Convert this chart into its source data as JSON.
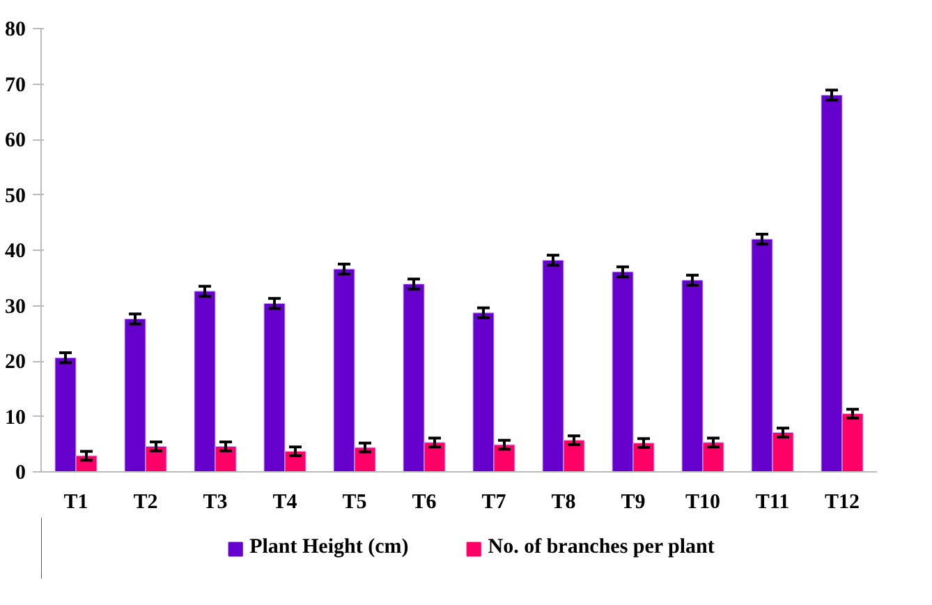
{
  "chart_data": {
    "type": "bar",
    "categories": [
      "T1",
      "T2",
      "T3",
      "T4",
      "T5",
      "T6",
      "T7",
      "T8",
      "T9",
      "T10",
      "T11",
      "T12"
    ],
    "series": [
      {
        "name": "Plant Height (cm)",
        "color": "#6600cc",
        "values": [
          20.6,
          27.6,
          32.6,
          30.4,
          36.6,
          33.9,
          28.7,
          38.2,
          36.1,
          34.6,
          42.0,
          68.0
        ],
        "errors": [
          0.9,
          0.9,
          0.9,
          0.9,
          0.9,
          0.9,
          0.9,
          0.9,
          0.9,
          0.9,
          0.9,
          0.9
        ]
      },
      {
        "name": "No. of branches per plant",
        "color": "#ff0066",
        "values": [
          2.9,
          4.6,
          4.6,
          3.7,
          4.4,
          5.3,
          4.9,
          5.7,
          5.2,
          5.3,
          7.1,
          10.5
        ],
        "errors": [
          0.8,
          0.8,
          0.8,
          0.8,
          0.8,
          0.8,
          0.8,
          0.8,
          0.8,
          0.8,
          0.8,
          0.8
        ]
      }
    ],
    "ylim": [
      0,
      80
    ],
    "yticks": [
      0,
      10,
      20,
      30,
      40,
      50,
      60,
      70,
      80
    ],
    "grid": false,
    "legend": "bottom"
  }
}
